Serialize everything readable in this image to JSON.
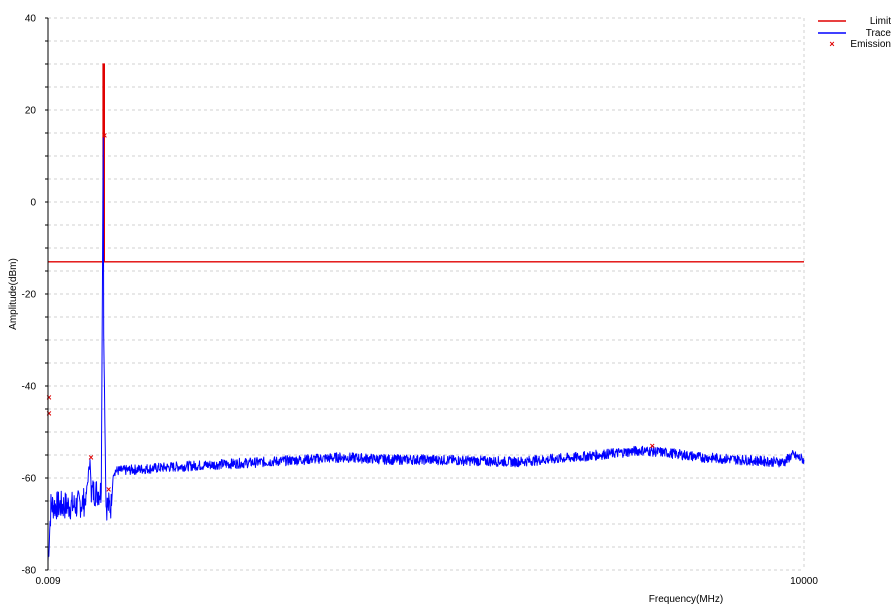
{
  "chart_data": {
    "type": "line",
    "title": "",
    "xlabel": "Frequency(MHz)",
    "ylabel": "Amplitude(dBm)",
    "x_tick_labels": [
      "0.009",
      "10000"
    ],
    "y_ticks": [
      40,
      20,
      0,
      -20,
      -40,
      -60,
      -80
    ],
    "ylim": [
      -80,
      40
    ],
    "xlim": [
      0.009,
      10000
    ],
    "grid": true,
    "legend_position": "top-right",
    "series": [
      {
        "name": "Limit",
        "color": "#e00000",
        "style": "line",
        "points": [
          [
            0.009,
            -13
          ],
          [
            0.0248,
            -13
          ],
          [
            0.0248,
            30
          ],
          [
            0.0254,
            30
          ],
          [
            0.0254,
            -13
          ],
          [
            10000,
            -13
          ]
        ]
      },
      {
        "name": "Trace",
        "color": "#0000ff",
        "style": "noise",
        "points": [
          [
            0.009,
            -78
          ],
          [
            0.0095,
            -66
          ],
          [
            0.012,
            -66
          ],
          [
            0.015,
            -66
          ],
          [
            0.018,
            -65
          ],
          [
            0.0195,
            -56
          ],
          [
            0.02,
            -63
          ],
          [
            0.024,
            -63
          ],
          [
            0.0249,
            14
          ],
          [
            0.0251,
            -28
          ],
          [
            0.0262,
            -66
          ],
          [
            0.029,
            -66
          ],
          [
            0.03,
            -58.5
          ],
          [
            0.1,
            -57.5
          ],
          [
            0.5,
            -56.5
          ],
          [
            2,
            -55.5
          ],
          [
            5,
            -56
          ],
          [
            10,
            -56
          ],
          [
            50,
            -56.5
          ],
          [
            150,
            -55.5
          ],
          [
            500,
            -54
          ],
          [
            800,
            -54.5
          ],
          [
            1500,
            -55.5
          ],
          [
            3000,
            -56
          ],
          [
            6000,
            -56.5
          ],
          [
            7000,
            -56.5
          ],
          [
            8000,
            -55
          ],
          [
            10000,
            -56
          ]
        ]
      },
      {
        "name": "Emission",
        "color": "#e00000",
        "style": "marker",
        "points": [
          [
            0.009,
            -42.5
          ],
          [
            0.009,
            -46
          ],
          [
            0.0195,
            -55.5
          ],
          [
            0.025,
            14.5
          ],
          [
            0.027,
            -62.5
          ],
          [
            600,
            -53
          ]
        ]
      }
    ]
  }
}
